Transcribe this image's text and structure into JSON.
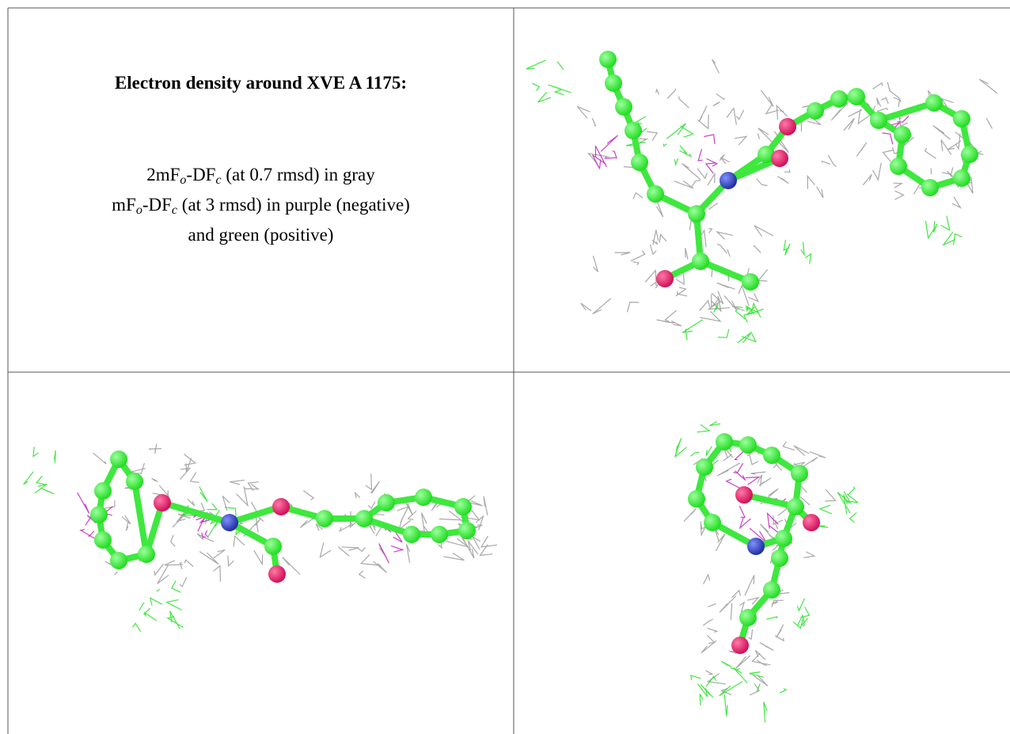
{
  "title": "Electron density around XVE A 1175:",
  "caption": {
    "line1": [
      "2mF",
      "o",
      "-DF",
      "c",
      " (at 0.7 rmsd) in gray"
    ],
    "line2": [
      "mF",
      "o",
      "-DF",
      "c",
      " (at 3 rmsd) in purple (negative)"
    ],
    "line3": "and green (positive)"
  }
}
